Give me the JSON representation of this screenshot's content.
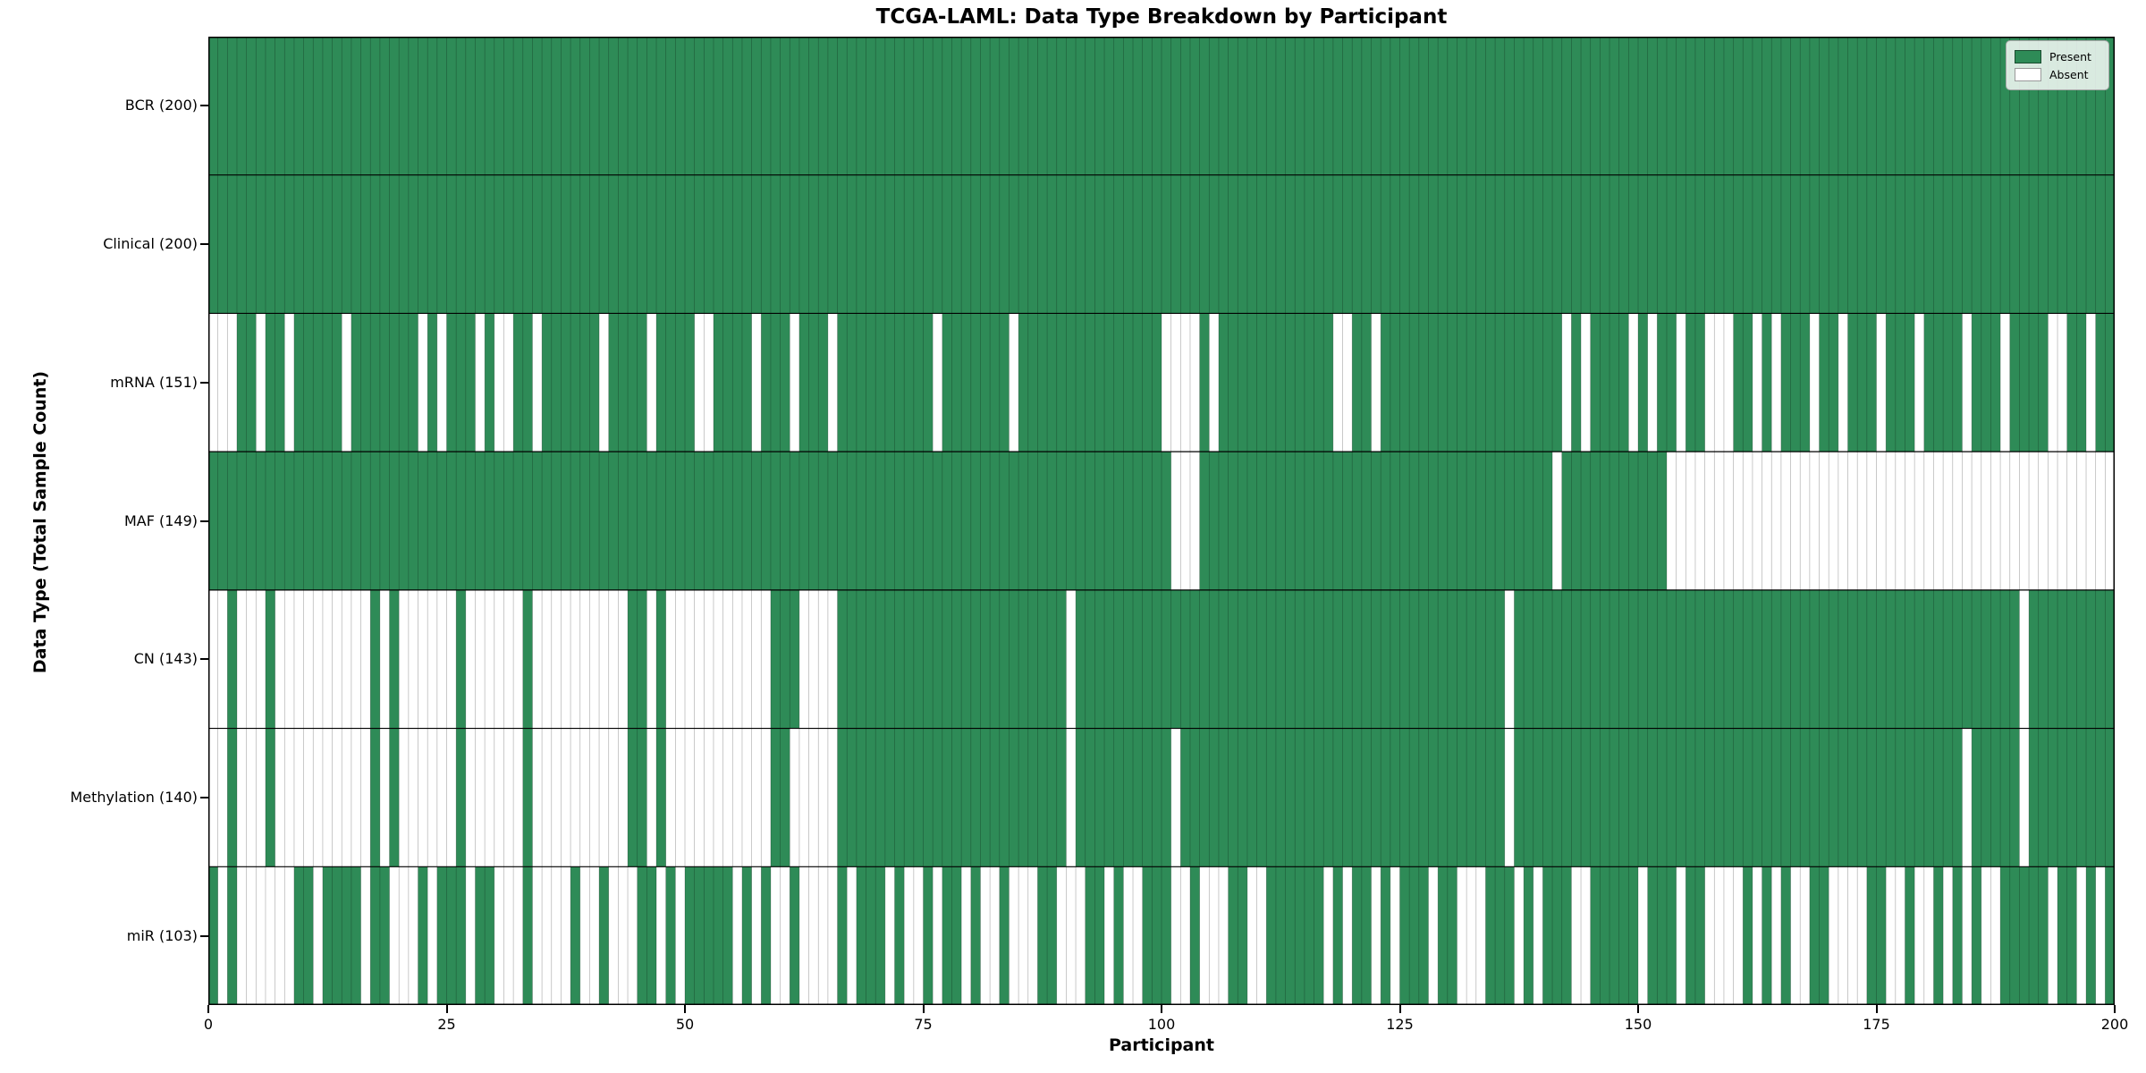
{
  "title": "TCGA-LAML: Data Type Breakdown by Participant",
  "colors": {
    "present": "#2e8b57",
    "absent": "#ffffff",
    "cell_edge": "rgba(0,0,0,0.30)",
    "row_divider": "#000000",
    "spine": "#000000"
  },
  "chart_data": {
    "type": "heatmap",
    "title": "TCGA-LAML: Data Type Breakdown by Participant",
    "xlabel": "Participant",
    "ylabel": "Data Type (Total Sample Count)",
    "x_axis": {
      "min": 0,
      "max": 200,
      "ticks": [
        0,
        25,
        50,
        75,
        100,
        125,
        150,
        175,
        200
      ]
    },
    "legend_position": "upper right",
    "grid": "cell-edges",
    "legend": [
      {
        "label": "Present",
        "color": "#2e8b57"
      },
      {
        "label": "Absent",
        "color": "#ffffff"
      }
    ],
    "value_encoding": {
      "1": "Present",
      "0": "Absent"
    },
    "rows": [
      {
        "name": "BCR",
        "label": "BCR (200)",
        "total": 200,
        "pattern": "11111111111111111111111111111111111111111111111111111111111111111111111111111111111111111111111111111111111111111111111111111111111111111111111111111111111111111111111111111111111111111111111111111111"
      },
      {
        "name": "Clinical",
        "label": "Clinical (200)",
        "total": 200,
        "pattern": "11111111111111111111111111111111111111111111111111111111111111111111111111111111111111111111111111111111111111111111111111111111111111111111111111111111111111111111111111111111111111111111111111111111"
      },
      {
        "name": "mRNA",
        "label": "mRNA (151)",
        "total": 151,
        "pattern": "00011011011111011111110101110100110111111011110111100111101110111011111111110111111101111111111111110000101111111111110011011111111111111111110101111010110110001101011101101110111011110111011110011011"
      },
      {
        "name": "MAF",
        "label": "MAF (149)",
        "total": 149,
        "pattern": "11111111111111111111111111111111111111111111111111111111111111111111111111111111111111111111111111111000111111111111111111111111111111111111101111111111100000000000000000000000000000000000000000000000"
      },
      {
        "name": "CN",
        "label": "CN (143)",
        "total": 143,
        "pattern": "00100010000000000101000000100000010000000000110100000000000111000011111111111111111111111101111111111111111111111111111111111111111111110111111111111111111111111111111111111111111111111111110111111111"
      },
      {
        "name": "Methylation",
        "label": "Methylation (140)",
        "total": 140,
        "pattern": "00100010000000000101000000100000010000000000110100000000000110000011111111111111111111111101111111111011111111111111111111111111111111110111111111111111111111111111111111111111111111110111110111111111"
      },
      {
        "name": "miR",
        "label": "miR (103)",
        "total": 103,
        "pattern": "10100000011011110110001011101100010000100100011010111110101001000010111010010110100100011000110100111001000110011111101011010111011000111010111001111101110110000101010011000011001001010100111110110101"
      }
    ]
  }
}
